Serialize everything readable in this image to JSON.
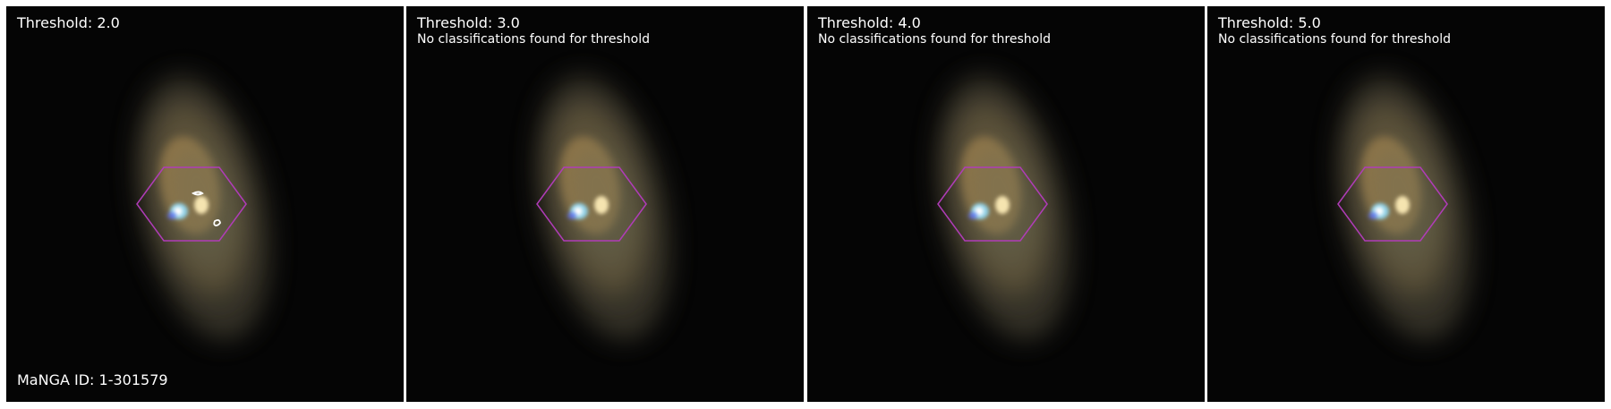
{
  "colors": {
    "hexagon": "#b03cb8",
    "contour": "#ffffff",
    "text": "#ffffff",
    "background": "#000000"
  },
  "panels": [
    {
      "threshold_label": "Threshold: 2.0",
      "note": "",
      "show_contours": true
    },
    {
      "threshold_label": "Threshold: 3.0",
      "note": "No classifications found for threshold",
      "show_contours": false
    },
    {
      "threshold_label": "Threshold: 4.0",
      "note": "No classifications found for threshold",
      "show_contours": false
    },
    {
      "threshold_label": "Threshold: 5.0",
      "note": "No classifications found for threshold",
      "show_contours": false
    }
  ],
  "manga_id_label": "MaNGA ID: 1-301579"
}
